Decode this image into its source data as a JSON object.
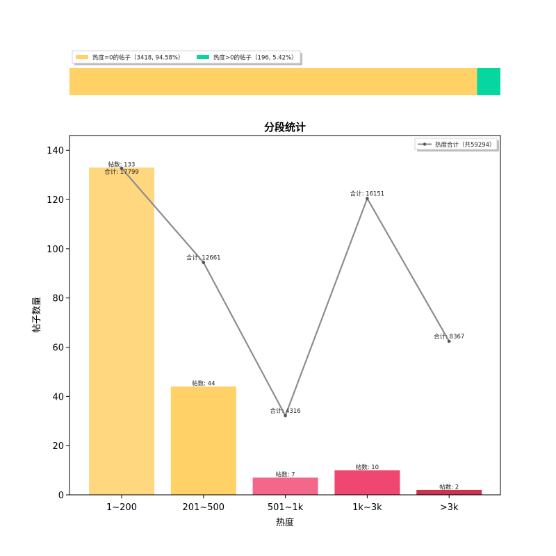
{
  "top_legend": {
    "item0": "热度=0的帖子（3418, 94.58%）",
    "item1": "热度>0的帖子（196, 5.42%）"
  },
  "colors": {
    "zero": "#FFD166",
    "positive": "#06D6A0",
    "line": "#8C8C92"
  },
  "chart_data": [
    {
      "type": "bar",
      "orientation": "horizontal-stacked",
      "segments": [
        {
          "label": "热度=0的帖子",
          "count": 3418,
          "percent": 94.58,
          "color": "#FFD166"
        },
        {
          "label": "热度>0的帖子",
          "count": 196,
          "percent": 5.42,
          "color": "#06D6A0"
        }
      ],
      "legend_placement": "top-left"
    },
    {
      "type": "bar",
      "title": "分段统计",
      "xlabel": "热度",
      "ylabel": "帖子数量",
      "categories": [
        "1~200",
        "201~500",
        "501~1k",
        "1k~3k",
        ">3k"
      ],
      "bar_values": [
        133,
        44,
        7,
        10,
        2
      ],
      "bar_labels": [
        "帖数: 133",
        "帖数: 44",
        "帖数: 7",
        "帖数: 10",
        "帖数: 2"
      ],
      "bar_colors": [
        "#FFD77F",
        "#FFD166",
        "#F2678A",
        "#EF476F",
        "#C9344F"
      ],
      "line_series": {
        "name": "热度合计（共59294）",
        "values": [
          17799,
          12661,
          4316,
          16151,
          8367
        ],
        "labels": [
          "合计: 17799",
          "合计: 12661",
          "合计: 4316",
          "合计: 16151",
          "合计: 8367"
        ],
        "color": "#8C8C92"
      },
      "ylim": [
        0,
        146
      ],
      "yticks": [
        "0",
        "20",
        "40",
        "60",
        "80",
        "100",
        "120",
        "140"
      ],
      "legend_placement": "top-right",
      "grid": false
    }
  ]
}
